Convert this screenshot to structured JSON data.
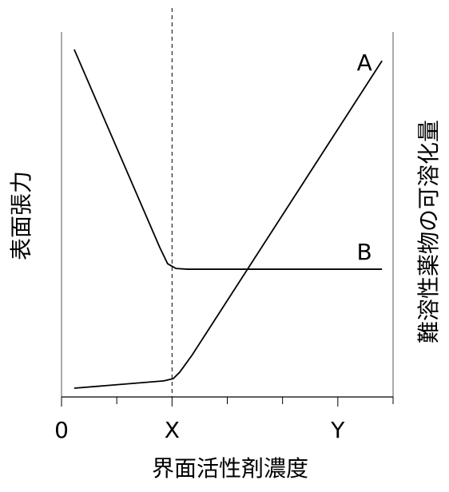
{
  "chart_data": {
    "type": "line",
    "xlabel": "界面活性剤濃度",
    "ylabel": "表面張力",
    "y2label": "難溶性薬物の可溶化量",
    "xlim": [
      0,
      6
    ],
    "xticks": [
      0,
      {
        "value": 2,
        "label": "X"
      },
      {
        "value": 5,
        "label": "Y"
      }
    ],
    "xminorticks": [
      1,
      3,
      4,
      6
    ],
    "ylim": [
      0,
      100
    ],
    "y2lim": [
      0,
      100
    ],
    "vline": 2,
    "series": [
      {
        "name": "A",
        "axis": "y2",
        "color": "#000000",
        "x": [
          0.23,
          1.85,
          2.02,
          2.14,
          2.36,
          5.8
        ],
        "values": [
          2.4,
          4.4,
          5.0,
          6.8,
          11.4,
          92.1
        ]
      },
      {
        "name": "B",
        "color": "#000000",
        "x": [
          0.23,
          1.78,
          1.92,
          2.07,
          2.28,
          5.8
        ],
        "values": [
          95.2,
          40.9,
          36.5,
          35.2,
          35.0,
          35.0
        ]
      }
    ]
  }
}
